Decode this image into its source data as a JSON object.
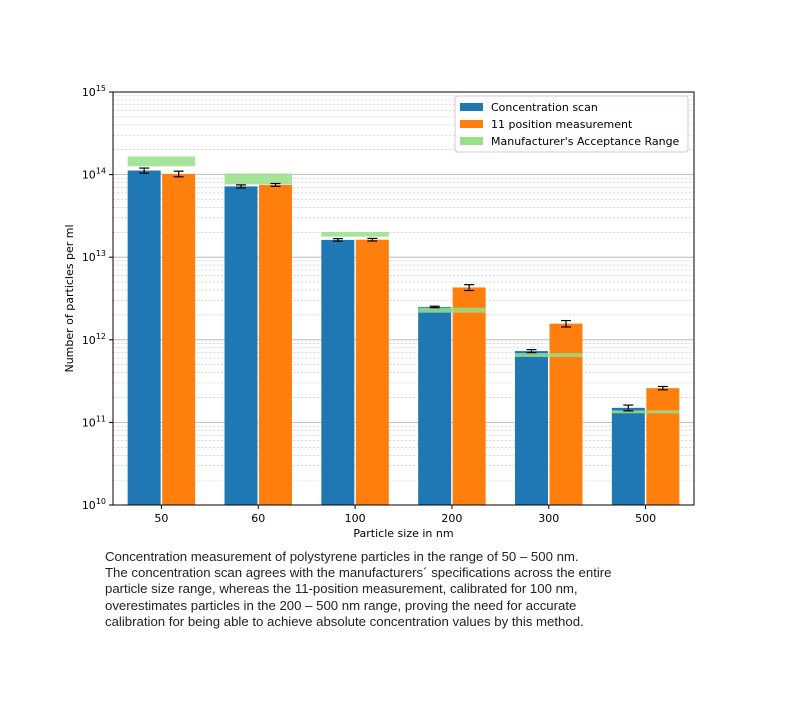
{
  "chart_data": {
    "type": "bar",
    "title": "",
    "xlabel": "Particle size in nm",
    "ylabel": "Number of particles per ml",
    "yscale": "log",
    "ylim": [
      10000000000.0,
      1000000000000000.0
    ],
    "y_ticks": [
      {
        "value": 10000000000.0,
        "base": "10",
        "exp": "10"
      },
      {
        "value": 100000000000.0,
        "base": "10",
        "exp": "11"
      },
      {
        "value": 1000000000000.0,
        "base": "10",
        "exp": "12"
      },
      {
        "value": 10000000000000.0,
        "base": "10",
        "exp": "13"
      },
      {
        "value": 100000000000000.0,
        "base": "10",
        "exp": "14"
      },
      {
        "value": 1000000000000000.0,
        "base": "10",
        "exp": "15"
      }
    ],
    "grid": "both major and minor, horizontal",
    "legend_position": "top-right",
    "categories": [
      "50",
      "60",
      "100",
      "200",
      "300",
      "500"
    ],
    "series": [
      {
        "name": "Concentration scan",
        "color": "#1f77b4",
        "values": [
          112000000000000.0,
          72000000000000.0,
          16200000000000.0,
          2500000000000.0,
          730000000000.0,
          150000000000.0
        ],
        "error": [
          8000000000000.0,
          3000000000000.0,
          600000000000.0,
          50000000000.0,
          30000000000.0,
          12000000000.0
        ]
      },
      {
        "name": "11 position measurement",
        "color": "#ff7f0e",
        "values": [
          102000000000000.0,
          75000000000000.0,
          16300000000000.0,
          4300000000000.0,
          1570000000000.0,
          260000000000.0
        ],
        "error": [
          8000000000000.0,
          3000000000000.0,
          600000000000.0,
          350000000000.0,
          140000000000.0,
          12000000000.0
        ]
      }
    ],
    "acceptance_range": {
      "name": "Manufacturer's Acceptance Range",
      "color": "#98df8a",
      "ranges": [
        [
          126000000000000.0,
          166000000000000.0
        ],
        [
          76000000000000.0,
          103000000000000.0
        ],
        [
          17700000000000.0,
          20200000000000.0
        ],
        [
          2130000000000.0,
          2450000000000.0
        ],
        [
          620000000000.0,
          690000000000.0
        ],
        [
          133000000000.0,
          140000000000.0
        ]
      ]
    }
  },
  "caption": {
    "lines": [
      "Concentration measurement of polystyrene particles in the range of 50 – 500 nm.",
      "The concentration scan agrees with the manufacturers´ specifications across the entire",
      "particle size range, whereas the 11-position measurement, calibrated for 100 nm,",
      "overestimates particles in the 200 – 500 nm range, proving the need for accurate",
      "calibration for being able to achieve absolute concentration values by this method."
    ]
  }
}
